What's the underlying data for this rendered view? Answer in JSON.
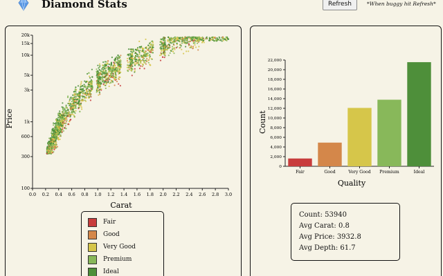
{
  "app": {
    "title": "Diamond Stats",
    "refresh_label": "Refresh",
    "hint": "*When buggy hit Refresh*"
  },
  "icons": {
    "logo": "diamond-icon"
  },
  "colors": {
    "fair": "#c83c3c",
    "good": "#d4874a",
    "very_good": "#d6c64a",
    "premium": "#88b85a",
    "ideal": "#4e8f3a"
  },
  "legend": {
    "items": [
      {
        "label": "Fair",
        "color": "#c83c3c"
      },
      {
        "label": "Good",
        "color": "#d4874a"
      },
      {
        "label": "Very Good",
        "color": "#d6c64a"
      },
      {
        "label": "Premium",
        "color": "#88b85a"
      },
      {
        "label": "Ideal",
        "color": "#4e8f3a"
      }
    ]
  },
  "stats": {
    "count": "Count: 53940",
    "avg_carat": "Avg Carat: 0.8",
    "avg_price": "Avg Price: 3932.8",
    "avg_depth": "Avg Depth: 61.7"
  },
  "chart_data": [
    {
      "type": "scatter",
      "xlabel": "Carat",
      "ylabel": "Price",
      "xlim": [
        0,
        3.0
      ],
      "ylim": [
        300,
        20000
      ],
      "yscale": "log",
      "x_ticks": [
        "0.0",
        "0.2",
        "0.4",
        "0.6",
        "0.8",
        "1.0",
        "1.2",
        "1.4",
        "1.6",
        "1.8",
        "2.0",
        "2.2",
        "2.4",
        "2.6",
        "2.8",
        "3.0"
      ],
      "y_ticks": [
        {
          "label": "20k",
          "value": 20000
        },
        {
          "label": "15k",
          "value": 15000
        },
        {
          "label": "10k",
          "value": 10000
        },
        {
          "label": "5k",
          "value": 5000
        },
        {
          "label": "3k",
          "value": 3000
        },
        {
          "label": "1k",
          "value": 1000
        },
        {
          "label": "600",
          "value": 600
        },
        {
          "label": "300",
          "value": 300
        },
        {
          "label": "100",
          "value": 100
        }
      ],
      "series": [
        {
          "name": "Fair",
          "color": "#c83c3c"
        },
        {
          "name": "Good",
          "color": "#d4874a"
        },
        {
          "name": "Very Good",
          "color": "#d6c64a"
        },
        {
          "name": "Premium",
          "color": "#88b85a"
        },
        {
          "name": "Ideal",
          "color": "#4e8f3a"
        }
      ]
    },
    {
      "type": "bar",
      "xlabel": "Quality",
      "ylabel": "Count",
      "ylim": [
        0,
        22000
      ],
      "y_ticks": [
        "0",
        "2,000",
        "4,000",
        "6,000",
        "8,000",
        "10,000",
        "12,000",
        "14,000",
        "16,000",
        "18,000",
        "20,000",
        "22,000"
      ],
      "categories": [
        "Fair",
        "Good",
        "Very Good",
        "Premium",
        "Ideal"
      ],
      "values": [
        1610,
        4906,
        12082,
        13791,
        21551
      ],
      "colors": [
        "#c83c3c",
        "#d4874a",
        "#d6c64a",
        "#88b85a",
        "#4e8f3a"
      ]
    }
  ]
}
